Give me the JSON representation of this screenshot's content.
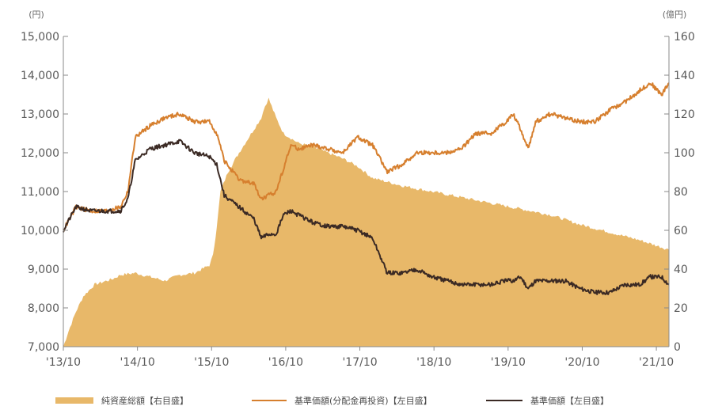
{
  "chart_data": {
    "type": "line",
    "left_unit": "(円)",
    "right_unit": "(億円)",
    "x_tick_labels": [
      "'13/10",
      "'14/10",
      "'15/10",
      "'16/10",
      "'17/10",
      "'18/10",
      "'19/10",
      "'20/10",
      "'21/10"
    ],
    "y_left_ticks": [
      "15,000",
      "14,000",
      "13,000",
      "12,000",
      "11,000",
      "10,000",
      "9,000",
      "8,000",
      "7,000"
    ],
    "y_right_ticks": [
      "160",
      "140",
      "120",
      "100",
      "80",
      "60",
      "40",
      "20",
      "0"
    ],
    "y_left_range": [
      7000,
      15000
    ],
    "y_right_range": [
      0,
      160
    ],
    "x_range": [
      2013.83,
      2022.0
    ],
    "colors": {
      "area": "#e8b869",
      "reinvested": "#d67f2e",
      "nav": "#3b2a24"
    },
    "series": [
      {
        "name": "純資産総額【右目盛】",
        "axis": "right",
        "style": "area",
        "x": [
          2013.83,
          2013.9,
          2014.0,
          2014.1,
          2014.25,
          2014.5,
          2014.6,
          2014.8,
          2014.9,
          2015.0,
          2015.2,
          2015.4,
          2015.6,
          2015.8,
          2015.85,
          2015.9,
          2015.95,
          2016.05,
          2016.2,
          2016.4,
          2016.5,
          2016.55,
          2016.6,
          2016.7,
          2016.8,
          2017.0,
          2017.2,
          2017.4,
          2017.6,
          2017.8,
          2018.0,
          2018.4,
          2018.8,
          2019.2,
          2019.6,
          2020.0,
          2020.4,
          2020.8,
          2021.2,
          2021.6,
          2022.0
        ],
        "values": [
          0,
          8,
          18,
          26,
          32,
          35,
          37,
          38,
          37,
          36,
          34,
          37,
          38,
          42,
          47,
          62,
          80,
          90,
          100,
          112,
          118,
          124,
          128,
          118,
          110,
          105,
          103,
          100,
          97,
          93,
          87,
          83,
          80,
          77,
          74,
          71,
          68,
          63,
          59,
          55,
          50
        ]
      },
      {
        "name": "基準価額(分配金再投資)【左目盛】",
        "axis": "left",
        "style": "line",
        "x": [
          2013.83,
          2014.0,
          2014.2,
          2014.4,
          2014.6,
          2014.7,
          2014.8,
          2015.0,
          2015.2,
          2015.4,
          2015.6,
          2015.8,
          2015.9,
          2016.0,
          2016.2,
          2016.4,
          2016.5,
          2016.6,
          2016.7,
          2016.8,
          2016.9,
          2017.0,
          2017.2,
          2017.4,
          2017.6,
          2017.8,
          2018.0,
          2018.2,
          2018.4,
          2018.6,
          2018.8,
          2019.0,
          2019.2,
          2019.4,
          2019.6,
          2019.8,
          2019.9,
          2020.0,
          2020.1,
          2020.2,
          2020.4,
          2020.6,
          2020.8,
          2021.0,
          2021.2,
          2021.4,
          2021.6,
          2021.75,
          2021.9,
          2022.0
        ],
        "values": [
          10000,
          10600,
          10500,
          10500,
          10600,
          11000,
          12400,
          12700,
          12900,
          13000,
          12800,
          12800,
          12500,
          11800,
          11300,
          11200,
          10800,
          10900,
          11000,
          11600,
          12200,
          12100,
          12200,
          12100,
          12000,
          12400,
          12200,
          11500,
          11700,
          12000,
          12000,
          12000,
          12100,
          12500,
          12500,
          12800,
          13000,
          12600,
          12100,
          12800,
          13000,
          12900,
          12800,
          12800,
          13100,
          13300,
          13600,
          13800,
          13500,
          13800
        ]
      },
      {
        "name": "基準価額【左目盛】",
        "axis": "left",
        "style": "line",
        "x": [
          2013.83,
          2014.0,
          2014.2,
          2014.4,
          2014.6,
          2014.7,
          2014.8,
          2015.0,
          2015.2,
          2015.4,
          2015.6,
          2015.8,
          2015.9,
          2016.0,
          2016.2,
          2016.4,
          2016.5,
          2016.6,
          2016.7,
          2016.8,
          2016.9,
          2017.0,
          2017.2,
          2017.4,
          2017.6,
          2017.8,
          2018.0,
          2018.2,
          2018.4,
          2018.6,
          2018.8,
          2019.0,
          2019.2,
          2019.4,
          2019.6,
          2019.8,
          2019.9,
          2020.0,
          2020.1,
          2020.2,
          2020.4,
          2020.6,
          2020.8,
          2021.0,
          2021.2,
          2021.4,
          2021.6,
          2021.75,
          2021.9,
          2022.0
        ],
        "values": [
          10000,
          10600,
          10500,
          10500,
          10500,
          10800,
          11800,
          12100,
          12200,
          12300,
          12000,
          11900,
          11700,
          10900,
          10600,
          10300,
          9800,
          9900,
          9900,
          10400,
          10500,
          10400,
          10200,
          10100,
          10100,
          10000,
          9800,
          8900,
          8900,
          9000,
          8800,
          8700,
          8600,
          8600,
          8600,
          8700,
          8700,
          8800,
          8500,
          8700,
          8700,
          8700,
          8500,
          8400,
          8400,
          8600,
          8600,
          8800,
          8800,
          8600
        ]
      }
    ],
    "legend": [
      {
        "label": "純資産総額【右目盛】",
        "marker": "area"
      },
      {
        "label": "基準価額(分配金再投資)【左目盛】",
        "marker": "line-orange"
      },
      {
        "label": "基準価額【左目盛】",
        "marker": "line-dark"
      }
    ]
  }
}
